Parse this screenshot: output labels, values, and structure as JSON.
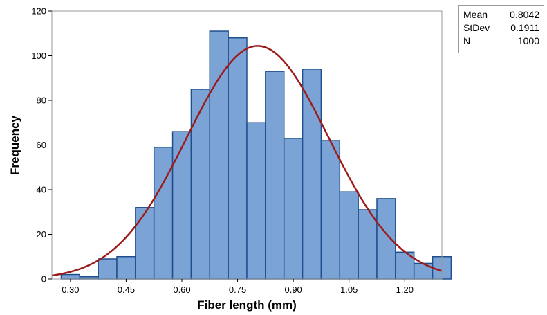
{
  "chart_data": {
    "type": "bar",
    "xlabel": "Fiber length (mm)",
    "ylabel": "Frequency",
    "xlim": [
      0.25,
      1.3
    ],
    "ylim": [
      0,
      120
    ],
    "x_ticks": [
      "0.30",
      "0.45",
      "0.60",
      "0.75",
      "0.90",
      "1.05",
      "1.20"
    ],
    "y_ticks": [
      "0",
      "20",
      "40",
      "60",
      "80",
      "100",
      "120"
    ],
    "bin_width": 0.05,
    "bins": [
      {
        "x": 0.3,
        "count": 2
      },
      {
        "x": 0.35,
        "count": 1
      },
      {
        "x": 0.4,
        "count": 9
      },
      {
        "x": 0.45,
        "count": 10
      },
      {
        "x": 0.5,
        "count": 32
      },
      {
        "x": 0.55,
        "count": 59
      },
      {
        "x": 0.6,
        "count": 66
      },
      {
        "x": 0.65,
        "count": 85
      },
      {
        "x": 0.7,
        "count": 111
      },
      {
        "x": 0.75,
        "count": 108
      },
      {
        "x": 0.8,
        "count": 70
      },
      {
        "x": 0.85,
        "count": 93
      },
      {
        "x": 0.9,
        "count": 63
      },
      {
        "x": 0.95,
        "count": 94
      },
      {
        "x": 1.0,
        "count": 62
      },
      {
        "x": 1.05,
        "count": 39
      },
      {
        "x": 1.1,
        "count": 31
      },
      {
        "x": 1.15,
        "count": 36
      },
      {
        "x": 1.2,
        "count": 12
      },
      {
        "x": 1.25,
        "count": 7
      },
      {
        "x": 1.3,
        "count": 10
      }
    ],
    "fit_curve": {
      "distribution": "normal",
      "mean": 0.8042,
      "stdev": 0.1911,
      "n": 1000
    },
    "colors": {
      "bar_fill": "#7ba3d6",
      "bar_edge": "#1f4e8c",
      "curve": "#9b1b1b"
    },
    "grid": false,
    "legend": "top-right"
  },
  "stats": [
    {
      "label": "Mean",
      "value": "0.8042"
    },
    {
      "label": "StDev",
      "value": "0.1911"
    },
    {
      "label": "N",
      "value": "1000"
    }
  ]
}
